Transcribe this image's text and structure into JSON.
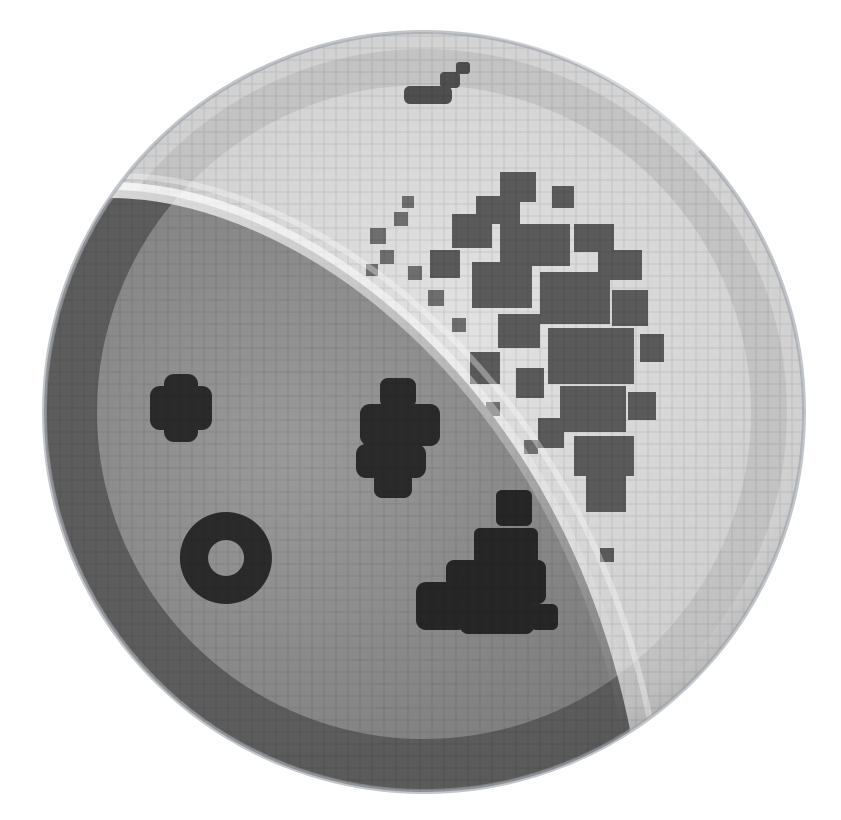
{
  "icon": {
    "name": "moon-phase-icon",
    "style": "pixelated grayscale moon with diagonal shadow",
    "colors": {
      "light_surface": "#d6d6d6",
      "light_rim": "#bdbdbd",
      "light_craters": "#5a5a5a",
      "shadow_surface": "#8e8e8e",
      "shadow_rim": "#4a4a4a",
      "shadow_craters": "#262626",
      "highlight": "#f4f4f4"
    }
  }
}
